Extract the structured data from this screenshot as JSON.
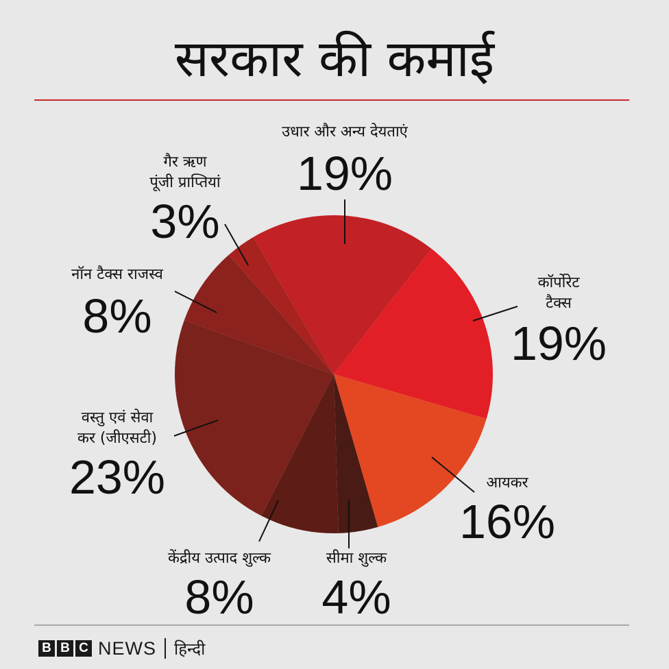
{
  "title": "सरकार की कमाई",
  "chart_data": {
    "type": "pie",
    "title": "सरकार की कमाई",
    "slices": [
      {
        "label": "उधार और अन्य देयताएं",
        "value": 19,
        "pct": "19%",
        "color": "#c22126"
      },
      {
        "label": "कॉर्पोरेट टैक्स",
        "value": 19,
        "pct": "19%",
        "color": "#e21f26"
      },
      {
        "label": "आयकर",
        "value": 16,
        "pct": "16%",
        "color": "#e44823"
      },
      {
        "label": "सीमा शुल्क",
        "value": 4,
        "pct": "4%",
        "color": "#4a1a14"
      },
      {
        "label": "केंद्रीय उत्पाद शुल्क",
        "value": 8,
        "pct": "8%",
        "color": "#5e1c16"
      },
      {
        "label": "वस्तु एवं सेवा कर (जीएसटी)",
        "value": 23,
        "pct": "23%",
        "color": "#7b221c"
      },
      {
        "label": "नॉन टैक्स राजस्व",
        "value": 8,
        "pct": "8%",
        "color": "#8b221d"
      },
      {
        "label": "गैर ऋण पूंजी प्राप्तियां",
        "value": 3,
        "pct": "3%",
        "color": "#a8221f"
      }
    ]
  },
  "labels": {
    "borrowing": {
      "line1": "उधार और अन्य देयताएं",
      "pct": "19%"
    },
    "corporate": {
      "line1": "कॉर्पोरेट",
      "line2": "टैक्स",
      "pct": "19%"
    },
    "income": {
      "line1": "आयकर",
      "pct": "16%"
    },
    "customs": {
      "line1": "सीमा शुल्क",
      "pct": "4%"
    },
    "excise": {
      "line1": "केंद्रीय उत्पाद शुल्क",
      "pct": "8%"
    },
    "gst": {
      "line1": "वस्तु एवं सेवा",
      "line2": "कर (जीएसटी)",
      "pct": "23%"
    },
    "nontax": {
      "line1": "नॉन टैक्स राजस्व",
      "pct": "8%"
    },
    "capital": {
      "line1": "गैर ऋण",
      "line2": "पूंजी प्राप्तियां",
      "pct": "3%"
    }
  },
  "footer": {
    "bbc_letters": [
      "B",
      "B",
      "C"
    ],
    "news": "NEWS",
    "language": "हिन्दी"
  }
}
